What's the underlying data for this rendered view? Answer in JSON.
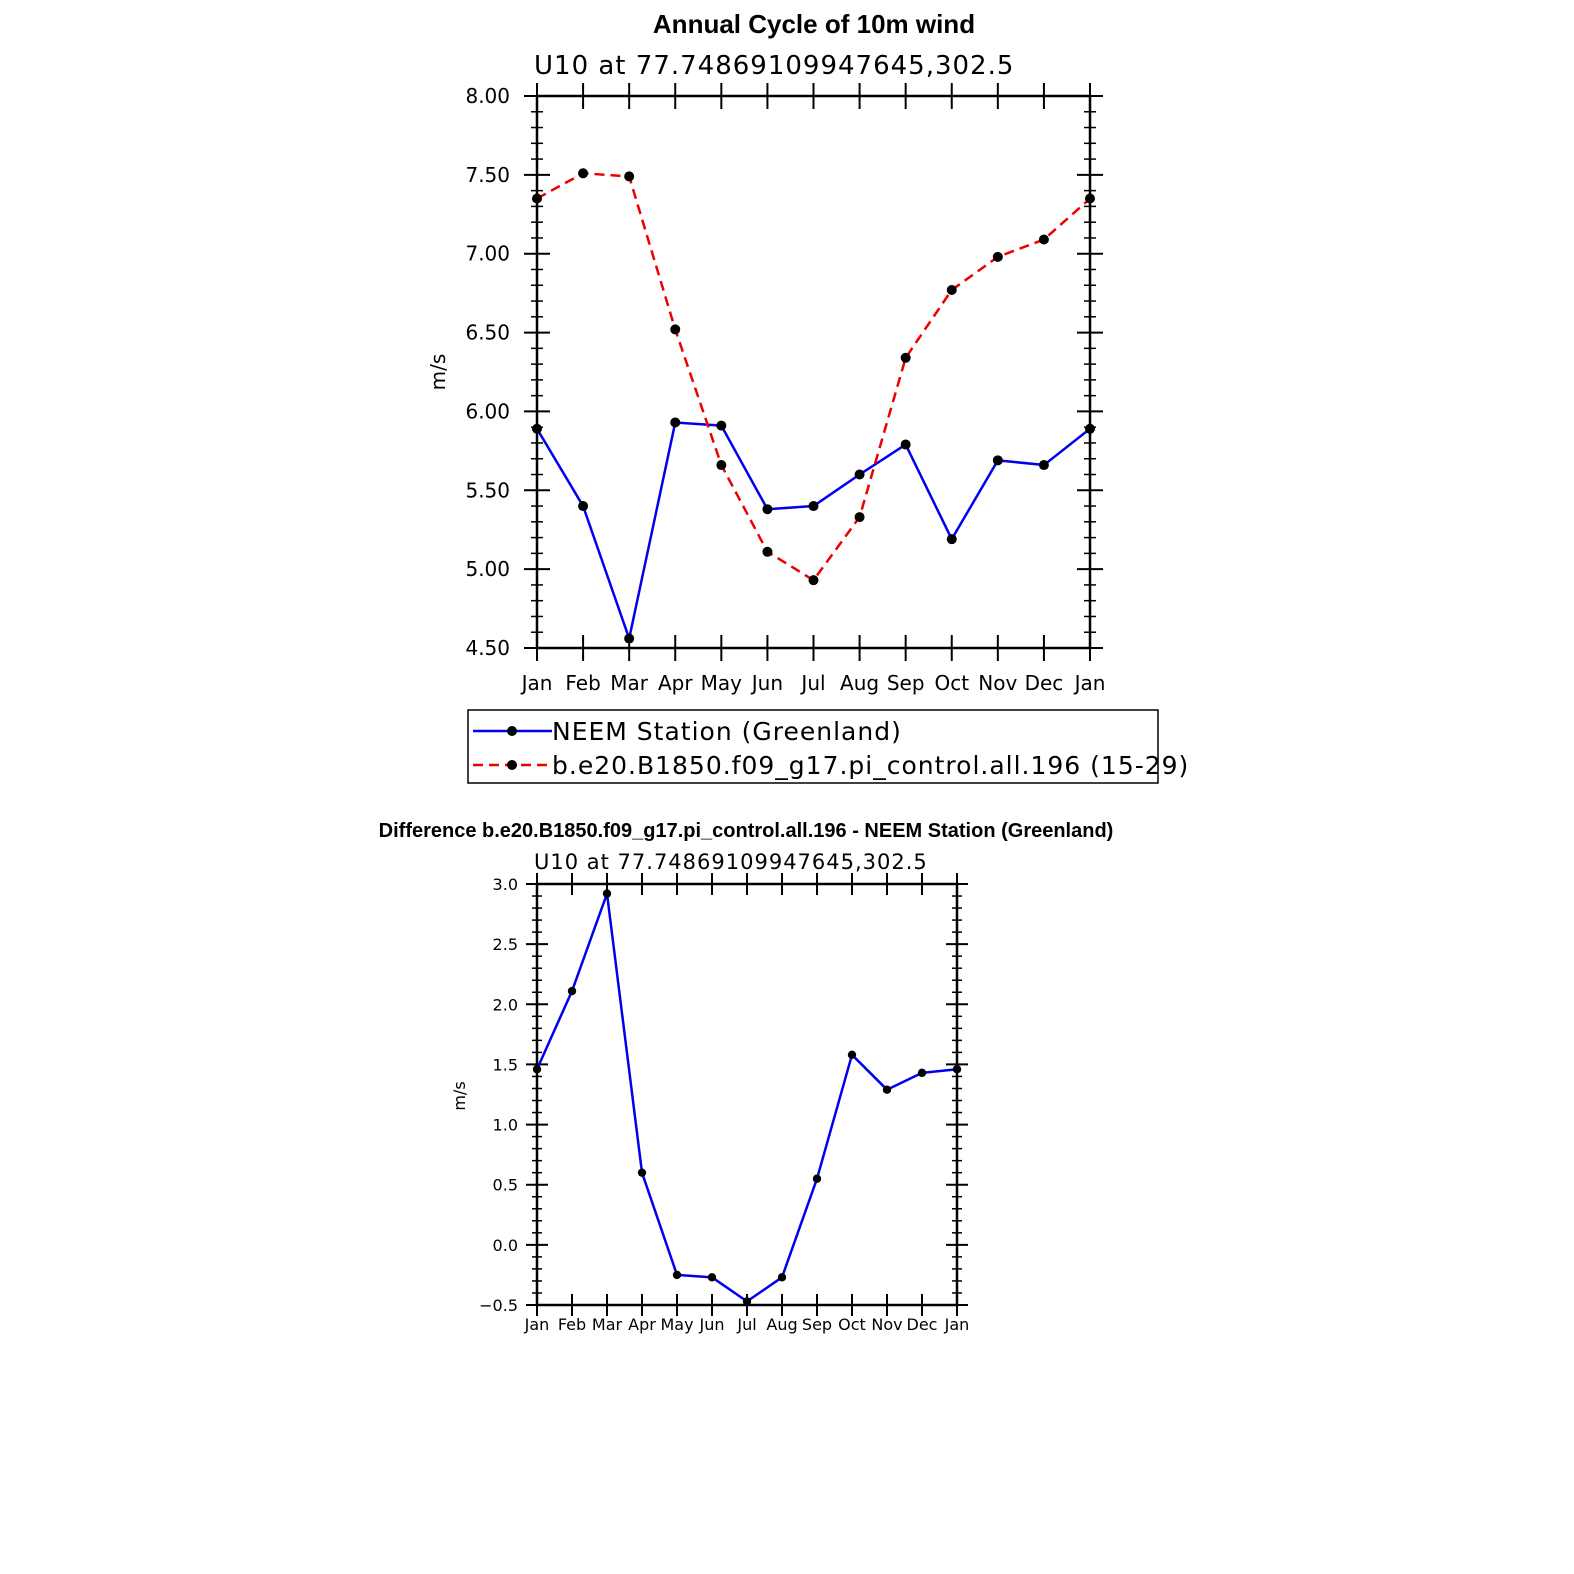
{
  "chart_data": [
    {
      "type": "line",
      "title": "Annual Cycle of 10m wind",
      "subtitle": "U10 at 77.74869109947645,302.5",
      "ylabel": "m/s",
      "ylim": [
        4.5,
        8.0
      ],
      "yticks": [
        "4.50",
        "5.00",
        "5.50",
        "6.00",
        "6.50",
        "7.00",
        "7.50",
        "8.00"
      ],
      "categories": [
        "Jan",
        "Feb",
        "Mar",
        "Apr",
        "May",
        "Jun",
        "Jul",
        "Aug",
        "Sep",
        "Oct",
        "Nov",
        "Dec",
        "Jan"
      ],
      "legend": "below",
      "grid": false,
      "series": [
        {
          "name": "NEEM Station (Greenland)",
          "color": "#0000ee",
          "style": "solid",
          "values": [
            5.89,
            5.4,
            4.56,
            5.93,
            5.91,
            5.38,
            5.4,
            5.6,
            5.79,
            5.19,
            5.69,
            5.66,
            5.89
          ]
        },
        {
          "name": "b.e20.B1850.f09_g17.pi_control.all.196 (15-29)",
          "color": "#ee0000",
          "style": "dashed",
          "values": [
            7.35,
            7.51,
            7.49,
            6.52,
            5.66,
            5.11,
            4.93,
            5.33,
            6.34,
            6.77,
            6.98,
            7.09,
            7.35
          ]
        }
      ]
    },
    {
      "type": "line",
      "title": "Difference b.e20.B1850.f09_g17.pi_control.all.196 - NEEM Station (Greenland)",
      "subtitle": "U10 at 77.74869109947645,302.5",
      "ylabel": "m/s",
      "ylim": [
        -0.5,
        3.0
      ],
      "yticks": [
        "−0.5",
        "0.0",
        "0.5",
        "1.0",
        "1.5",
        "2.0",
        "2.5",
        "3.0"
      ],
      "categories": [
        "Jan",
        "Feb",
        "Mar",
        "Apr",
        "May",
        "Jun",
        "Jul",
        "Aug",
        "Sep",
        "Oct",
        "Nov",
        "Dec",
        "Jan"
      ],
      "grid": false,
      "series": [
        {
          "color": "#0000ee",
          "style": "solid",
          "values": [
            1.46,
            2.11,
            2.92,
            0.6,
            -0.25,
            -0.27,
            -0.47,
            -0.27,
            0.55,
            1.58,
            1.29,
            1.43,
            1.46
          ]
        }
      ]
    }
  ]
}
